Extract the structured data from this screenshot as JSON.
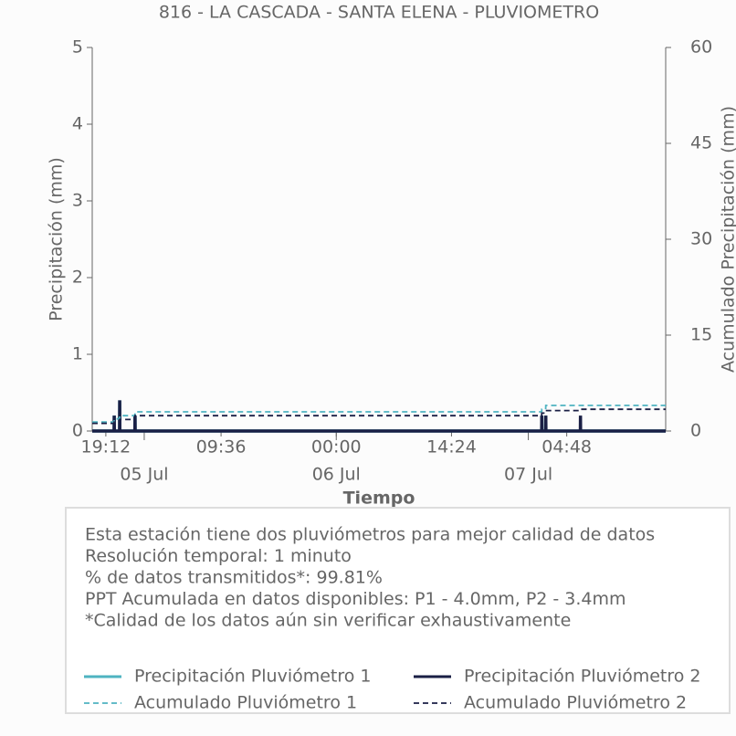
{
  "chart_data": {
    "type": "line",
    "title": "816 - LA CASCADA - SANTA ELENA - PLUVIOMETRO",
    "xlabel": "Tiempo",
    "ylabel": "Precipitación (mm)",
    "y2label": "Acumulado Precipitación (mm)",
    "x": [
      "04 Jul 17:30",
      "04 Jul 20:14",
      "04 Jul 20:15",
      "04 Jul 20:16",
      "04 Jul 20:55",
      "04 Jul 20:56",
      "04 Jul 20:57",
      "04 Jul 22:50",
      "04 Jul 22:51",
      "04 Jul 22:52",
      "07 Jul 01:40",
      "07 Jul 01:41",
      "07 Jul 01:42",
      "07 Jul 02:10",
      "07 Jul 02:11",
      "07 Jul 02:12",
      "07 Jul 06:30",
      "07 Jul 06:31",
      "07 Jul 06:32",
      "07 Jul 17:10"
    ],
    "xlim": [
      "04 Jul 17:30",
      "07 Jul 17:10"
    ],
    "xticks": [
      {
        "value": "04 Jul 19:12",
        "label": "19:12"
      },
      {
        "value": "05 Jul 09:36",
        "label": "09:36"
      },
      {
        "value": "06 Jul 00:00",
        "label": "00:00"
      },
      {
        "value": "06 Jul 14:24",
        "label": "14:24"
      },
      {
        "value": "07 Jul 04:48",
        "label": "04:48"
      }
    ],
    "xdateticks": [
      {
        "value": "05 Jul 00:00",
        "label": "05 Jul"
      },
      {
        "value": "06 Jul 00:00",
        "label": "06 Jul"
      },
      {
        "value": "07 Jul 00:00",
        "label": "07 Jul"
      }
    ],
    "ylim": [
      0,
      5
    ],
    "yticks": [
      0,
      1,
      2,
      3,
      4,
      5
    ],
    "y2lim": [
      0,
      60
    ],
    "y2ticks": [
      0,
      15,
      30,
      45,
      60
    ],
    "series": [
      {
        "name": "Precipitación Pluviómetro 1",
        "color": "#4eb3c1",
        "linestyle": "solid",
        "values": [
          0,
          0,
          0.2,
          0,
          0,
          0.4,
          0,
          0,
          0.2,
          0,
          0,
          0.2,
          0,
          0,
          0.2,
          0,
          0,
          0,
          0,
          0
        ]
      },
      {
        "name": "Precipitación Pluviómetro 2",
        "color": "#1a1f45",
        "linestyle": "solid",
        "values": [
          0,
          0,
          0.2,
          0,
          0,
          0.4,
          0,
          0,
          0.2,
          0,
          0,
          0.2,
          0,
          0,
          0.2,
          0,
          0,
          0.2,
          0,
          0
        ]
      },
      {
        "name": "Acumulado Pluviómetro 1",
        "color": "#4eb3c1",
        "linestyle": "dashed",
        "axis": "y2",
        "values": [
          1.4,
          1.4,
          1.9,
          1.9,
          1.9,
          2.4,
          2.4,
          2.4,
          3.0,
          3.0,
          3.0,
          3.4,
          3.4,
          3.4,
          4.0,
          4.0,
          4.0,
          4.0,
          4.0,
          4.0
        ]
      },
      {
        "name": "Acumulado Pluviómetro 2",
        "color": "#1a1f45",
        "linestyle": "dashed",
        "axis": "y2",
        "values": [
          1.2,
          1.2,
          1.4,
          1.4,
          1.4,
          1.8,
          1.8,
          1.8,
          2.4,
          2.4,
          2.4,
          2.8,
          2.8,
          2.8,
          3.2,
          3.2,
          3.2,
          3.4,
          3.4,
          3.4
        ]
      }
    ],
    "notes": [
      "Esta estación tiene dos pluviómetros para mejor calidad de datos",
      "Resolución temporal: 1 minuto",
      "% de datos transmitidos*: 99.81%",
      "PPT Acumulada en datos disponibles: P1 - 4.0mm, P2 - 3.4mm",
      "*Calidad de los datos aún sin verificar exhaustivamente"
    ]
  }
}
